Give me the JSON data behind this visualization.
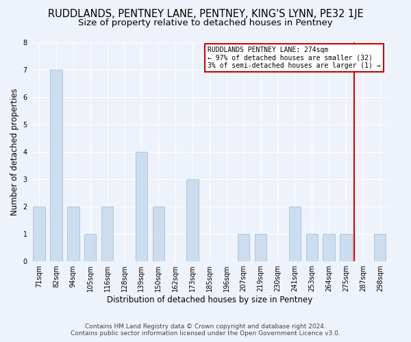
{
  "title": "RUDDLANDS, PENTNEY LANE, PENTNEY, KING'S LYNN, PE32 1JE",
  "subtitle": "Size of property relative to detached houses in Pentney",
  "xlabel": "Distribution of detached houses by size in Pentney",
  "ylabel": "Number of detached properties",
  "categories": [
    "71sqm",
    "82sqm",
    "94sqm",
    "105sqm",
    "116sqm",
    "128sqm",
    "139sqm",
    "150sqm",
    "162sqm",
    "173sqm",
    "185sqm",
    "196sqm",
    "207sqm",
    "219sqm",
    "230sqm",
    "241sqm",
    "253sqm",
    "264sqm",
    "275sqm",
    "287sqm",
    "298sqm"
  ],
  "values": [
    2,
    7,
    2,
    1,
    2,
    0,
    4,
    2,
    0,
    3,
    0,
    0,
    1,
    1,
    0,
    2,
    1,
    1,
    1,
    0,
    1
  ],
  "bar_color": "#ccddef",
  "bar_edge_color": "#9ab8d8",
  "vline_x_index": 18.5,
  "annotation_box_color": "#cc0000",
  "property_label": "RUDDLANDS PENTNEY LANE: 274sqm",
  "pct_smaller": 97,
  "n_smaller": 32,
  "pct_larger_semi": 3,
  "n_larger_semi": 1,
  "ylim": [
    0,
    8
  ],
  "yticks": [
    0,
    1,
    2,
    3,
    4,
    5,
    6,
    7,
    8
  ],
  "footer_line1": "Contains HM Land Registry data © Crown copyright and database right 2024.",
  "footer_line2": "Contains public sector information licensed under the Open Government Licence v3.0.",
  "bg_color": "#eef2fa",
  "title_fontsize": 10.5,
  "subtitle_fontsize": 9.5,
  "axis_label_fontsize": 8.5,
  "tick_fontsize": 7,
  "footer_fontsize": 6.5,
  "bar_width": 0.7
}
